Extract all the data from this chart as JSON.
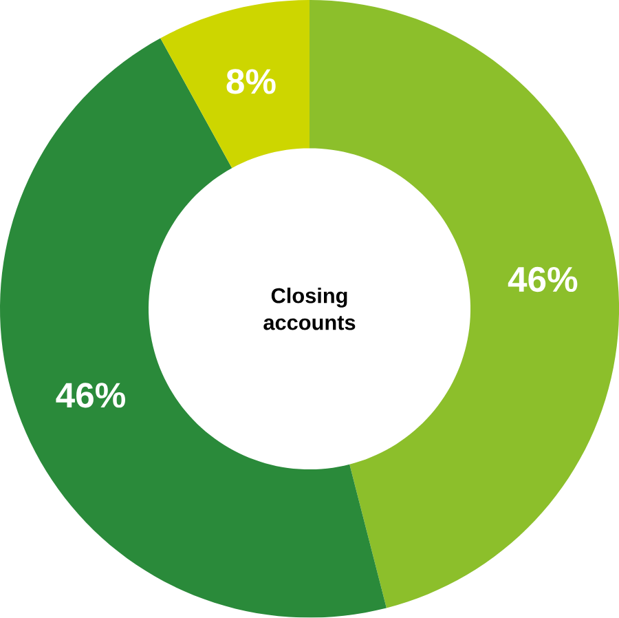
{
  "chart_data": {
    "type": "donut",
    "title": "Closing accounts",
    "categories": [
      null,
      null,
      null
    ],
    "values": [
      46,
      46,
      8
    ],
    "colors": [
      "#8cbf2b",
      "#2a8a3a",
      "#cdd600"
    ],
    "value_labels": [
      "46%",
      "46%",
      "8%"
    ]
  }
}
